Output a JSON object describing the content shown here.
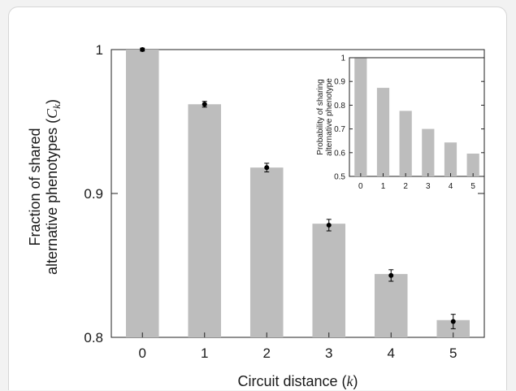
{
  "chart_data": [
    {
      "type": "bar",
      "categories": [
        "0",
        "1",
        "2",
        "3",
        "4",
        "5"
      ],
      "values": [
        1.0,
        0.962,
        0.918,
        0.879,
        0.844,
        0.812
      ],
      "point_values": [
        1.0,
        0.962,
        0.918,
        0.878,
        0.843,
        0.811
      ],
      "error": [
        0.001,
        0.002,
        0.003,
        0.004,
        0.004,
        0.005
      ],
      "xlabel_prefix": "Circuit distance (",
      "xlabel_var": "k",
      "xlabel_suffix": ")",
      "ylabel_line1": "Fraction of shared",
      "ylabel_line2_prefix": "alternative phenotypes (",
      "ylabel_var": "C",
      "ylabel_sub": "k",
      "ylabel_line2_suffix": ")",
      "ylim": [
        0.8,
        1.0
      ],
      "yticks": [
        0.8,
        0.9,
        1.0
      ],
      "ytick_labels": [
        "0.8",
        "0.9",
        "1"
      ],
      "bar_color": "#bdbdbd",
      "point_color": "#000000"
    },
    {
      "type": "bar",
      "categories": [
        "0",
        "1",
        "2",
        "3",
        "4",
        "5"
      ],
      "values": [
        0.998,
        0.873,
        0.776,
        0.7,
        0.643,
        0.596
      ],
      "ylabel_line1": "Probability of sharing",
      "ylabel_line2": "alternative phenotype",
      "ylim": [
        0.5,
        1.0
      ],
      "yticks": [
        0.5,
        0.6,
        0.7,
        0.8,
        0.9,
        1.0
      ],
      "ytick_labels": [
        "0.5",
        "0.6",
        "0.7",
        "0.8",
        "0.9",
        "1"
      ],
      "bar_color": "#bdbdbd"
    }
  ]
}
